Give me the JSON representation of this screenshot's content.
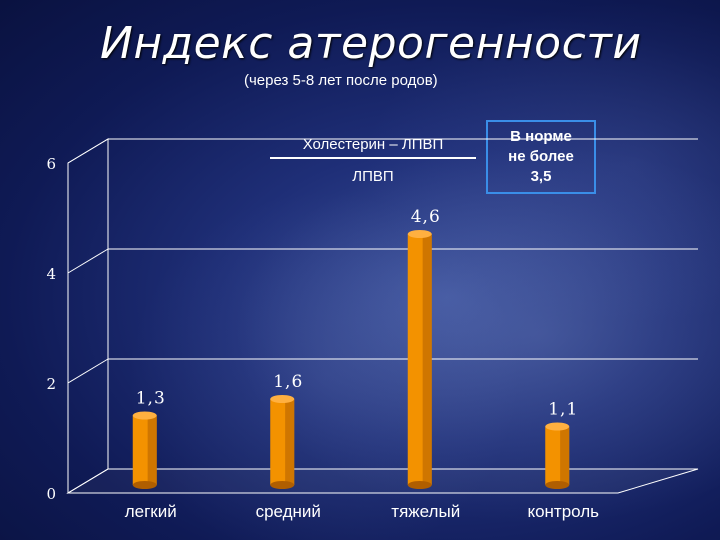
{
  "slide": {
    "title": "Индекс атерогенности",
    "subtitle": "(через 5-8 лет после родов)",
    "formula": {
      "numerator": "Холестерин – ЛПВП",
      "denominator": "ЛПВП"
    },
    "norm_note": "В норме\nне более\n3,5"
  },
  "colors": {
    "bar": "#f39200",
    "bar_dark": "#b05e00",
    "text": "#ffffff",
    "grid": "#ffffff",
    "box_border": "#3a8ee8"
  },
  "chart_data": {
    "type": "bar",
    "categories": [
      "легкий",
      "средний",
      "тяжелый",
      "контроль"
    ],
    "values": [
      1.3,
      1.6,
      4.6,
      1.1
    ],
    "value_labels": [
      "1,3",
      "1,6",
      "4,6",
      "1,1"
    ],
    "y_ticks": [
      "0",
      "2",
      "4",
      "6"
    ],
    "ylim": [
      0,
      6
    ],
    "grid": true,
    "title": "",
    "xlabel": "",
    "ylabel": ""
  }
}
